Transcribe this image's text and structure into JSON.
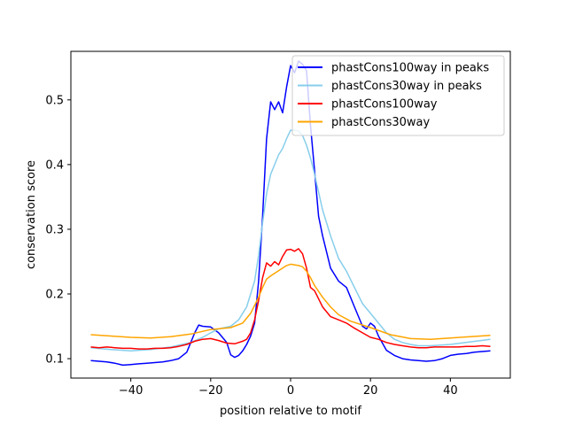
{
  "chart_data": {
    "type": "line",
    "title": "",
    "xlabel": "position relative to motif",
    "ylabel": "conservation score",
    "xlim": [
      -55,
      55
    ],
    "ylim": [
      0.07,
      0.575
    ],
    "xticks": [
      -40,
      -20,
      0,
      20,
      40
    ],
    "xtick_labels": [
      "−40",
      "−20",
      "0",
      "20",
      "40"
    ],
    "yticks": [
      0.1,
      0.2,
      0.3,
      0.4,
      0.5
    ],
    "ytick_labels": [
      "0.1",
      "0.2",
      "0.3",
      "0.4",
      "0.5"
    ],
    "grid": false,
    "legend_position": "top-right",
    "series": [
      {
        "name": "phastCons100way in peaks",
        "color": "#0000ff",
        "x": [
          -50,
          -48,
          -46,
          -44,
          -42,
          -40,
          -38,
          -36,
          -34,
          -32,
          -30,
          -28,
          -26,
          -24,
          -23,
          -22,
          -20,
          -18,
          -16,
          -15,
          -14,
          -13,
          -12,
          -11,
          -10,
          -9,
          -8,
          -7,
          -6,
          -5,
          -4,
          -3,
          -2,
          -1,
          0,
          1,
          2,
          3,
          4,
          5,
          6,
          7,
          8,
          10,
          12,
          14,
          16,
          18,
          19,
          20,
          21,
          22,
          24,
          26,
          28,
          30,
          32,
          34,
          36,
          38,
          40,
          42,
          44,
          46,
          48,
          50
        ],
        "y": [
          0.097,
          0.096,
          0.095,
          0.093,
          0.09,
          0.091,
          0.092,
          0.093,
          0.094,
          0.095,
          0.097,
          0.1,
          0.11,
          0.14,
          0.152,
          0.15,
          0.149,
          0.14,
          0.125,
          0.106,
          0.102,
          0.105,
          0.112,
          0.122,
          0.135,
          0.155,
          0.22,
          0.32,
          0.44,
          0.497,
          0.485,
          0.497,
          0.48,
          0.52,
          0.553,
          0.542,
          0.56,
          0.555,
          0.545,
          0.46,
          0.39,
          0.32,
          0.29,
          0.24,
          0.22,
          0.21,
          0.18,
          0.15,
          0.146,
          0.155,
          0.15,
          0.135,
          0.113,
          0.105,
          0.1,
          0.098,
          0.097,
          0.096,
          0.097,
          0.1,
          0.105,
          0.107,
          0.108,
          0.11,
          0.111,
          0.112
        ]
      },
      {
        "name": "phastCons30way in peaks",
        "color": "#87ceeb",
        "x": [
          -50,
          -45,
          -40,
          -35,
          -30,
          -25,
          -22,
          -20,
          -18,
          -15,
          -13,
          -11,
          -9,
          -8,
          -7,
          -6,
          -5,
          -4,
          -3,
          -2,
          -1,
          0,
          1,
          2,
          3,
          4,
          5,
          6,
          8,
          10,
          12,
          14,
          16,
          18,
          20,
          22,
          24,
          26,
          28,
          30,
          32,
          35,
          40,
          45,
          50
        ],
        "y": [
          0.117,
          0.114,
          0.112,
          0.114,
          0.118,
          0.125,
          0.133,
          0.14,
          0.146,
          0.15,
          0.16,
          0.18,
          0.22,
          0.26,
          0.31,
          0.355,
          0.385,
          0.4,
          0.415,
          0.425,
          0.44,
          0.453,
          0.453,
          0.452,
          0.445,
          0.43,
          0.41,
          0.385,
          0.33,
          0.29,
          0.255,
          0.235,
          0.21,
          0.185,
          0.17,
          0.155,
          0.14,
          0.13,
          0.125,
          0.122,
          0.12,
          0.12,
          0.122,
          0.126,
          0.13
        ]
      },
      {
        "name": "phastCons100way",
        "color": "#ff0000",
        "x": [
          -50,
          -48,
          -46,
          -44,
          -42,
          -40,
          -38,
          -36,
          -34,
          -32,
          -30,
          -28,
          -26,
          -24,
          -22,
          -20,
          -18,
          -16,
          -14,
          -12,
          -11,
          -10,
          -9,
          -8,
          -7,
          -6,
          -5,
          -4,
          -3,
          -2,
          -1,
          0,
          1,
          2,
          3,
          4,
          5,
          6,
          8,
          10,
          12,
          14,
          16,
          18,
          20,
          22,
          24,
          26,
          28,
          30,
          32,
          34,
          36,
          38,
          40,
          42,
          44,
          46,
          48,
          50
        ],
        "y": [
          0.118,
          0.117,
          0.118,
          0.117,
          0.116,
          0.116,
          0.115,
          0.115,
          0.116,
          0.116,
          0.117,
          0.119,
          0.122,
          0.127,
          0.13,
          0.131,
          0.128,
          0.124,
          0.123,
          0.127,
          0.13,
          0.14,
          0.16,
          0.19,
          0.225,
          0.248,
          0.243,
          0.25,
          0.245,
          0.258,
          0.268,
          0.269,
          0.266,
          0.27,
          0.262,
          0.24,
          0.21,
          0.205,
          0.18,
          0.165,
          0.16,
          0.155,
          0.147,
          0.14,
          0.133,
          0.13,
          0.125,
          0.122,
          0.12,
          0.118,
          0.117,
          0.117,
          0.118,
          0.118,
          0.118,
          0.118,
          0.119,
          0.119,
          0.12,
          0.119
        ]
      },
      {
        "name": "phastCons30way",
        "color": "#ffa500",
        "x": [
          -50,
          -45,
          -40,
          -35,
          -30,
          -25,
          -20,
          -15,
          -12,
          -10,
          -8,
          -7,
          -6,
          -5,
          -4,
          -3,
          -2,
          -1,
          0,
          1,
          2,
          3,
          4,
          5,
          6,
          8,
          10,
          12,
          15,
          20,
          25,
          30,
          35,
          40,
          45,
          50
        ],
        "y": [
          0.137,
          0.135,
          0.133,
          0.132,
          0.134,
          0.138,
          0.145,
          0.148,
          0.155,
          0.17,
          0.195,
          0.21,
          0.223,
          0.228,
          0.232,
          0.236,
          0.24,
          0.244,
          0.246,
          0.245,
          0.244,
          0.242,
          0.235,
          0.225,
          0.213,
          0.195,
          0.18,
          0.168,
          0.158,
          0.148,
          0.137,
          0.131,
          0.13,
          0.132,
          0.134,
          0.136
        ]
      }
    ]
  }
}
